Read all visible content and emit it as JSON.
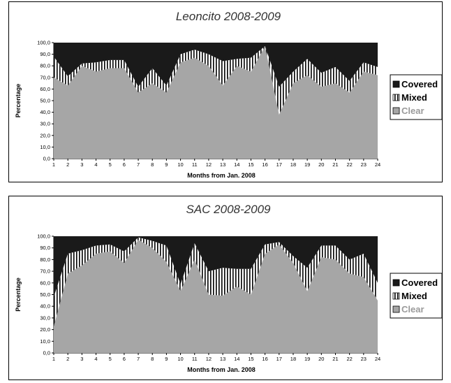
{
  "chart_data": [
    {
      "type": "area",
      "stacked": true,
      "title": "Leoncito 2008-2009",
      "xlabel": "Months from Jan. 2008",
      "ylabel": "Percentage",
      "ylim": [
        0,
        100
      ],
      "y_ticks": [
        "0,0",
        "10,0",
        "20,0",
        "30,0",
        "40,0",
        "50,0",
        "60,0",
        "70,0",
        "80,0",
        "90,0",
        "100,0"
      ],
      "x": [
        1,
        2,
        3,
        4,
        5,
        6,
        7,
        8,
        9,
        10,
        11,
        12,
        13,
        14,
        15,
        16,
        17,
        18,
        19,
        20,
        21,
        22,
        23,
        24
      ],
      "legend_position": "right",
      "series": [
        {
          "name": "Clear",
          "color": "#a6a6a6",
          "pattern": "solid",
          "values": [
            70,
            63,
            80,
            75,
            78,
            78,
            57,
            65,
            57,
            83,
            87,
            80,
            63,
            80,
            75,
            97,
            38,
            65,
            72,
            62,
            65,
            57,
            75,
            72
          ]
        },
        {
          "name": "Mixed",
          "color": "#000000",
          "pattern": "vertical-stripes",
          "values": [
            18,
            8,
            2,
            8,
            7,
            7,
            5,
            13,
            6,
            7,
            7,
            10,
            21,
            6,
            12,
            0,
            24,
            10,
            14,
            12,
            14,
            10,
            8,
            7
          ]
        },
        {
          "name": "Covered",
          "color": "#1a1a1a",
          "pattern": "solid",
          "values": [
            12,
            29,
            18,
            17,
            15,
            15,
            38,
            22,
            37,
            10,
            6,
            10,
            16,
            14,
            13,
            3,
            38,
            25,
            14,
            26,
            21,
            33,
            17,
            21
          ]
        }
      ]
    },
    {
      "type": "area",
      "stacked": true,
      "title": "SAC 2008-2009",
      "xlabel": "Months from Jan. 2008",
      "ylabel": "Percentage",
      "ylim": [
        0,
        100
      ],
      "y_ticks": [
        "0,0",
        "10,0",
        "20,0",
        "30,0",
        "40,0",
        "50,0",
        "60,0",
        "70,0",
        "80,0",
        "90,0",
        "100,0"
      ],
      "x": [
        1,
        2,
        3,
        4,
        5,
        6,
        7,
        8,
        9,
        10,
        11,
        12,
        13,
        14,
        15,
        16,
        17,
        18,
        19,
        20,
        21,
        22,
        23,
        24
      ],
      "legend_position": "right",
      "series": [
        {
          "name": "Clear",
          "color": "#a6a6a6",
          "pattern": "solid",
          "values": [
            23,
            68,
            75,
            85,
            87,
            77,
            97,
            90,
            78,
            53,
            80,
            50,
            49,
            57,
            50,
            85,
            93,
            77,
            53,
            82,
            80,
            68,
            65,
            45
          ]
        },
        {
          "name": "Mixed",
          "color": "#000000",
          "pattern": "vertical-stripes",
          "values": [
            25,
            17,
            13,
            7,
            6,
            10,
            2,
            6,
            14,
            6,
            14,
            20,
            24,
            15,
            22,
            8,
            2,
            6,
            20,
            10,
            12,
            12,
            20,
            15
          ]
        },
        {
          "name": "Covered",
          "color": "#1a1a1a",
          "pattern": "solid",
          "values": [
            52,
            15,
            12,
            8,
            7,
            13,
            1,
            4,
            8,
            41,
            6,
            30,
            27,
            28,
            28,
            7,
            5,
            17,
            27,
            8,
            8,
            20,
            15,
            40
          ]
        }
      ]
    }
  ]
}
